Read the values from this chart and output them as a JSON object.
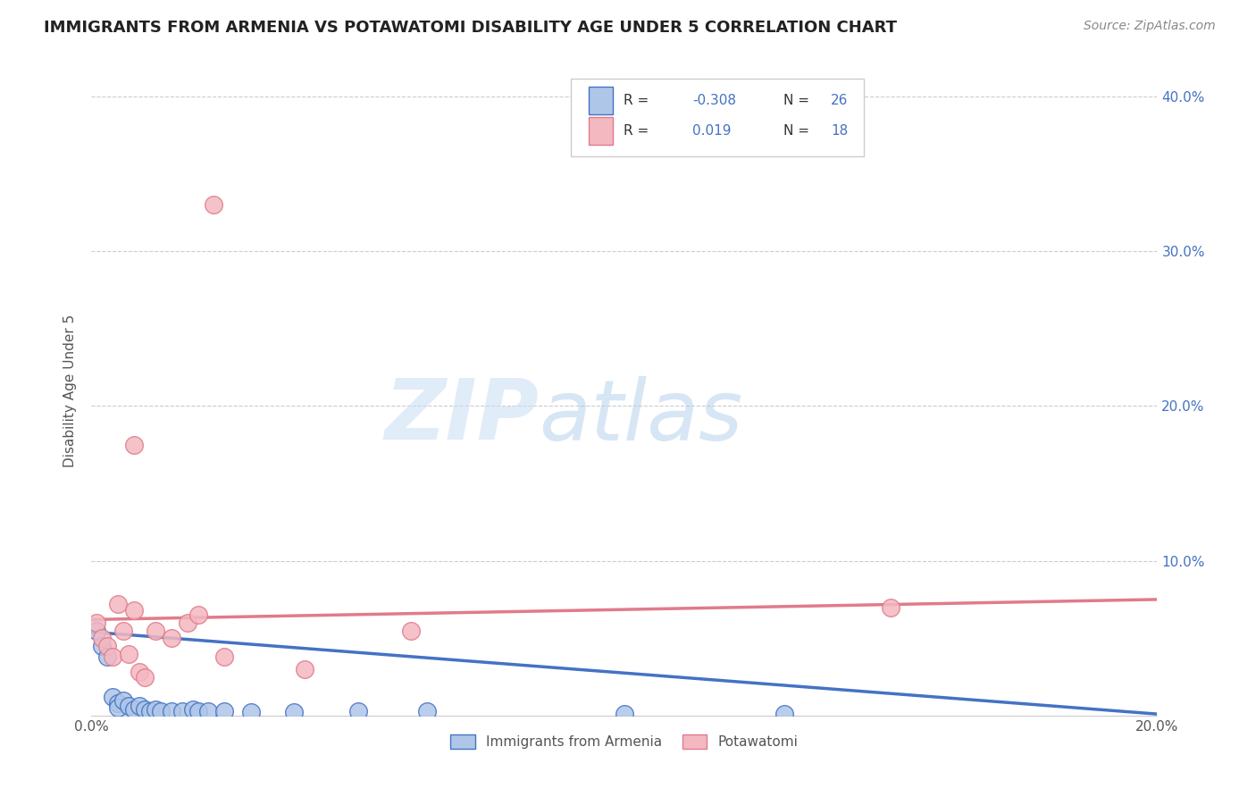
{
  "title": "IMMIGRANTS FROM ARMENIA VS POTAWATOMI DISABILITY AGE UNDER 5 CORRELATION CHART",
  "source": "Source: ZipAtlas.com",
  "ylabel": "Disability Age Under 5",
  "xlim": [
    0,
    0.2
  ],
  "ylim": [
    0,
    0.42
  ],
  "xticks": [
    0.0,
    0.05,
    0.1,
    0.15,
    0.2
  ],
  "xtick_labels": [
    "0.0%",
    "",
    "",
    "",
    "20.0%"
  ],
  "yticks": [
    0,
    0.1,
    0.2,
    0.3,
    0.4
  ],
  "ytick_labels_right": [
    "",
    "10.0%",
    "20.0%",
    "30.0%",
    "40.0%"
  ],
  "color_blue": "#aec6e8",
  "color_pink": "#f4b8c1",
  "line_blue": "#4472c4",
  "line_pink": "#e07b8a",
  "blue_points": [
    [
      0.001,
      0.055
    ],
    [
      0.002,
      0.045
    ],
    [
      0.003,
      0.038
    ],
    [
      0.004,
      0.012
    ],
    [
      0.005,
      0.008
    ],
    [
      0.005,
      0.005
    ],
    [
      0.006,
      0.01
    ],
    [
      0.007,
      0.006
    ],
    [
      0.008,
      0.004
    ],
    [
      0.009,
      0.006
    ],
    [
      0.01,
      0.004
    ],
    [
      0.011,
      0.003
    ],
    [
      0.012,
      0.004
    ],
    [
      0.013,
      0.003
    ],
    [
      0.015,
      0.003
    ],
    [
      0.017,
      0.003
    ],
    [
      0.019,
      0.004
    ],
    [
      0.02,
      0.003
    ],
    [
      0.022,
      0.003
    ],
    [
      0.025,
      0.003
    ],
    [
      0.03,
      0.002
    ],
    [
      0.038,
      0.002
    ],
    [
      0.05,
      0.003
    ],
    [
      0.063,
      0.003
    ],
    [
      0.1,
      0.001
    ],
    [
      0.13,
      0.001
    ]
  ],
  "pink_points": [
    [
      0.001,
      0.06
    ],
    [
      0.002,
      0.05
    ],
    [
      0.003,
      0.045
    ],
    [
      0.004,
      0.038
    ],
    [
      0.005,
      0.072
    ],
    [
      0.006,
      0.055
    ],
    [
      0.007,
      0.04
    ],
    [
      0.008,
      0.068
    ],
    [
      0.009,
      0.028
    ],
    [
      0.01,
      0.025
    ],
    [
      0.012,
      0.055
    ],
    [
      0.015,
      0.05
    ],
    [
      0.018,
      0.06
    ],
    [
      0.02,
      0.065
    ],
    [
      0.025,
      0.038
    ],
    [
      0.04,
      0.03
    ],
    [
      0.06,
      0.055
    ],
    [
      0.15,
      0.07
    ]
  ],
  "pink_outlier1": [
    0.023,
    0.33
  ],
  "pink_outlier2": [
    0.008,
    0.175
  ],
  "title_fontsize": 13,
  "axis_label_fontsize": 11,
  "tick_fontsize": 11,
  "source_fontsize": 10
}
